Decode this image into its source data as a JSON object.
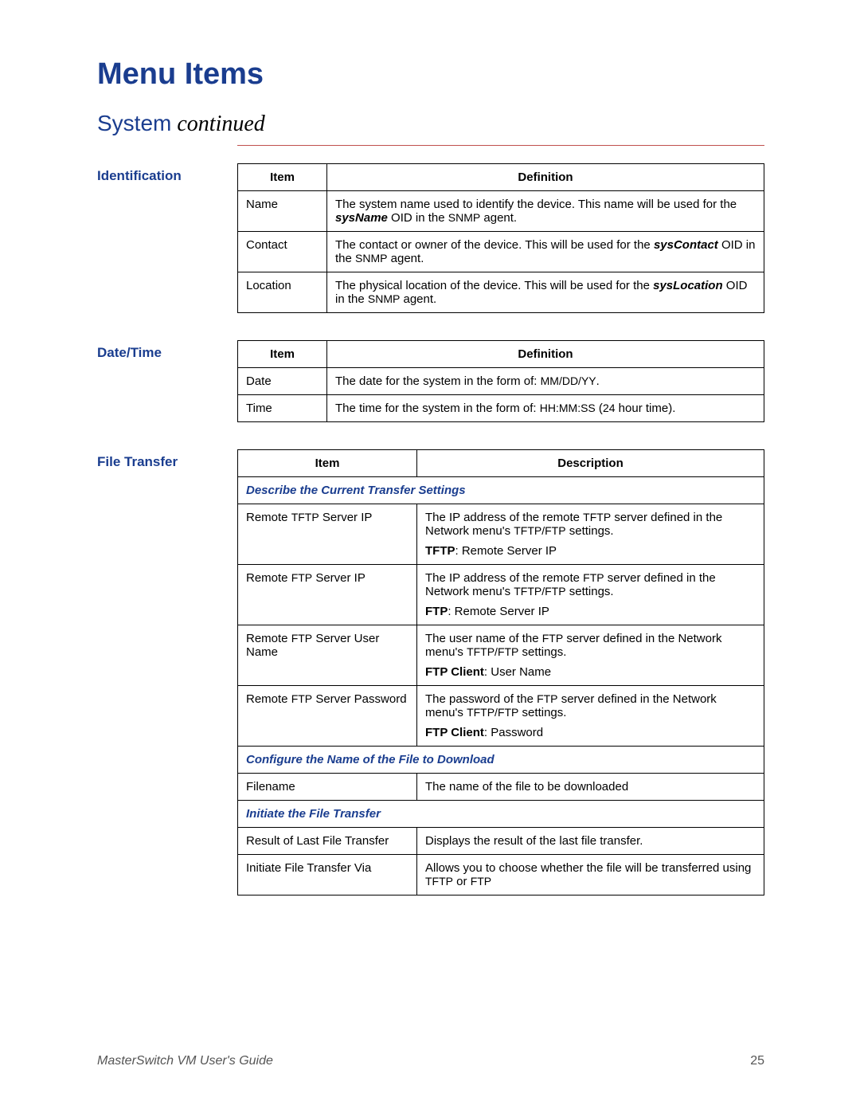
{
  "colors": {
    "accent": "#1a3d8f",
    "rule": "#c0504d",
    "border": "#000000",
    "text": "#000000",
    "footer": "#555555",
    "background": "#ffffff"
  },
  "typography": {
    "title_fontsize": 38,
    "subtitle_fontsize": 28,
    "section_label_fontsize": 17,
    "body_fontsize": 15,
    "title_font": "Trebuchet MS",
    "body_font": "Arial"
  },
  "page_title": "Menu Items",
  "subtitle_main": "System",
  "subtitle_cont": " continued",
  "sections": {
    "identification": {
      "label": "Identification",
      "headers": {
        "item": "Item",
        "definition": "Definition"
      },
      "rows": [
        {
          "item": "Name",
          "def_pre": "The system name used to identify the device. This name will be used for the ",
          "def_oid": "sysName",
          "def_mid": " OID in the ",
          "def_sc": "SNMP",
          "def_post": " agent."
        },
        {
          "item": "Contact",
          "def_pre": "The contact or owner of the device. This will be used for the ",
          "def_oid": "sysContact",
          "def_mid": " OID in the ",
          "def_sc": "SNMP",
          "def_post": " agent."
        },
        {
          "item": "Location",
          "def_pre": "The physical location of the device. This will be used for the ",
          "def_oid": "sysLocation",
          "def_mid": " OID in the ",
          "def_sc": "SNMP",
          "def_post": " agent."
        }
      ]
    },
    "datetime": {
      "label": "Date/Time",
      "headers": {
        "item": "Item",
        "definition": "Definition"
      },
      "rows": [
        {
          "item": "Date",
          "def_pre": "The date for the system in the form of: ",
          "def_sc": "MM/DD/YY",
          "def_post": "."
        },
        {
          "item": "Time",
          "def_pre": "The time for the system in the form of: ",
          "def_sc": "HH:MM:SS",
          "def_mid": " (",
          "def_sc2": "24",
          "def_post": " hour time)."
        }
      ]
    },
    "filetransfer": {
      "label": "File Transfer",
      "headers": {
        "item": "Item",
        "description": "Description"
      },
      "group1_title": "Describe the Current Transfer Settings",
      "rows1": [
        {
          "item_pre": "Remote ",
          "item_sc": "TFTP",
          "item_post": " Server IP",
          "desc_pre": "The IP address of the remote ",
          "desc_sc1": "TFTP",
          "desc_mid": " server defined in the Network menu's ",
          "desc_sc2": "TFTP/FTP",
          "desc_post": " settings.",
          "link_label": "TFTP",
          "link_post": ": Remote Server IP"
        },
        {
          "item_pre": "Remote ",
          "item_sc": "FTP",
          "item_post": " Server IP",
          "desc_pre": "The IP address of the remote ",
          "desc_sc1": "FTP",
          "desc_mid": " server defined in the Network menu's ",
          "desc_sc2": "TFTP/FTP",
          "desc_post": " settings.",
          "link_label": "FTP",
          "link_post": ": Remote Server IP"
        },
        {
          "item_pre": "Remote ",
          "item_sc": "FTP",
          "item_post": " Server User Name",
          "desc_pre": "The user name of the ",
          "desc_sc1": "FTP",
          "desc_mid": " server defined in the Network menu's ",
          "desc_sc2": "TFTP/FTP",
          "desc_post": " settings.",
          "link_label": "FTP Client",
          "link_post": ": User Name"
        },
        {
          "item_pre": "Remote ",
          "item_sc": "FTP",
          "item_post": " Server Password",
          "desc_pre": "The password of the ",
          "desc_sc1": "FTP",
          "desc_mid": " server defined in the Network menu's ",
          "desc_sc2": "TFTP/FTP",
          "desc_post": " settings.",
          "link_label": "FTP Client",
          "link_post": ": Password"
        }
      ],
      "group2_title": "Configure the Name of the File to Download",
      "rows2": [
        {
          "item": "Filename",
          "desc": "The name of the file to be downloaded"
        }
      ],
      "group3_title": "Initiate the File Transfer",
      "rows3": [
        {
          "item": "Result of Last File Transfer",
          "desc": "Displays the result of the last file transfer."
        },
        {
          "item": "Initiate File Transfer Via",
          "desc_pre": "Allows you to choose whether the file will be transferred using ",
          "desc_sc1": "TFTP",
          "desc_mid": " or ",
          "desc_sc2": "FTP"
        }
      ]
    }
  },
  "footer": {
    "title": "MasterSwitch VM User's Guide",
    "page": "25"
  }
}
